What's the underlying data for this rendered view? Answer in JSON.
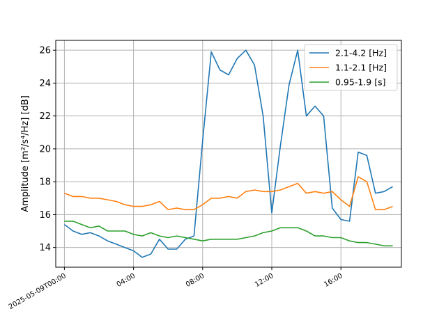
{
  "chart_data": {
    "type": "line",
    "title": "",
    "xlabel": "",
    "ylabel": "Amplitude [m²/s⁴/Hz] [dB]",
    "ylim": [
      12.8,
      26.6
    ],
    "xlim": [
      -0.5,
      19.5
    ],
    "grid": true,
    "legend_position": "top-right",
    "x_ticks": [
      {
        "x": 0,
        "label": "2025-05-09T00:00"
      },
      {
        "x": 4,
        "label": "04:00"
      },
      {
        "x": 8,
        "label": "08:00"
      },
      {
        "x": 12,
        "label": "12:00"
      },
      {
        "x": 16,
        "label": "16:00"
      }
    ],
    "y_ticks": [
      14,
      16,
      18,
      20,
      22,
      24,
      26
    ],
    "series": [
      {
        "name": "2.1-4.2 [Hz]",
        "color": "#1f77b4",
        "x": [
          0,
          0.5,
          1,
          1.5,
          2,
          2.5,
          3,
          3.5,
          4,
          4.5,
          5,
          5.5,
          6,
          6.5,
          7,
          7.5,
          8,
          8.5,
          9,
          9.5,
          10,
          10.5,
          11,
          11.5,
          12,
          12.5,
          13,
          13.5,
          14,
          14.5,
          15,
          15.5,
          16,
          16.5,
          17,
          17.5,
          18,
          18.5,
          19
        ],
        "values": [
          15.4,
          15.0,
          14.8,
          14.9,
          14.7,
          14.4,
          14.2,
          14.0,
          13.8,
          13.4,
          13.6,
          14.5,
          13.9,
          13.9,
          14.5,
          14.7,
          20.5,
          25.9,
          24.8,
          24.5,
          25.5,
          26.0,
          25.1,
          22.0,
          16.1,
          20.2,
          23.9,
          26.0,
          22.0,
          22.6,
          22.0,
          16.4,
          15.7,
          15.6,
          19.8,
          19.6,
          17.3,
          17.4,
          17.7
        ]
      },
      {
        "name": "1.1-2.1 [Hz]",
        "color": "#ff7f0e",
        "x": [
          0,
          0.5,
          1,
          1.5,
          2,
          2.5,
          3,
          3.5,
          4,
          4.5,
          5,
          5.5,
          6,
          6.5,
          7,
          7.5,
          8,
          8.5,
          9,
          9.5,
          10,
          10.5,
          11,
          11.5,
          12,
          12.5,
          13,
          13.5,
          14,
          14.5,
          15,
          15.5,
          16,
          16.5,
          17,
          17.5,
          18,
          18.5,
          19
        ],
        "values": [
          17.3,
          17.1,
          17.1,
          17.0,
          17.0,
          16.9,
          16.8,
          16.6,
          16.5,
          16.5,
          16.6,
          16.8,
          16.3,
          16.4,
          16.3,
          16.3,
          16.6,
          17.0,
          17.0,
          17.1,
          17.0,
          17.4,
          17.5,
          17.4,
          17.4,
          17.5,
          17.7,
          17.9,
          17.3,
          17.4,
          17.3,
          17.4,
          16.9,
          16.5,
          18.3,
          18.0,
          16.3,
          16.3,
          16.5
        ]
      },
      {
        "name": "0.95-1.9 [s]",
        "color": "#2ca02c",
        "x": [
          0,
          0.5,
          1,
          1.5,
          2,
          2.5,
          3,
          3.5,
          4,
          4.5,
          5,
          5.5,
          6,
          6.5,
          7,
          7.5,
          8,
          8.5,
          9,
          9.5,
          10,
          10.5,
          11,
          11.5,
          12,
          12.5,
          13,
          13.5,
          14,
          14.5,
          15,
          15.5,
          16,
          16.5,
          17,
          17.5,
          18,
          18.5,
          19
        ],
        "values": [
          15.6,
          15.6,
          15.4,
          15.2,
          15.3,
          15.0,
          15.0,
          15.0,
          14.8,
          14.7,
          14.9,
          14.7,
          14.6,
          14.7,
          14.6,
          14.5,
          14.4,
          14.5,
          14.5,
          14.5,
          14.5,
          14.6,
          14.7,
          14.9,
          15.0,
          15.2,
          15.2,
          15.2,
          15.0,
          14.7,
          14.7,
          14.6,
          14.6,
          14.4,
          14.3,
          14.3,
          14.2,
          14.1,
          14.1
        ]
      }
    ]
  }
}
